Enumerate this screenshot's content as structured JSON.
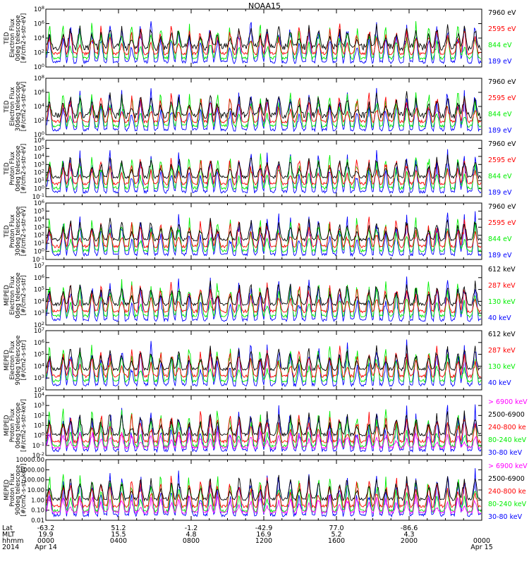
{
  "title": "NOAA15",
  "colors": {
    "black": "#000000",
    "red": "#ff0000",
    "green": "#00ee00",
    "blue": "#0000ff",
    "magenta": "#ff00ff"
  },
  "chart_data": [
    {
      "type": "line",
      "instrument": "TED",
      "ylabel": [
        "TED",
        "Electron Flux",
        "0deg telescope",
        "[#/cm2-s-str-eV]"
      ],
      "scale": "log",
      "yticks": [
        "10^0",
        "10^2",
        "10^4",
        "10^6",
        "10^8"
      ],
      "series": [
        {
          "name": "7960 eV",
          "color": "#000000"
        },
        {
          "name": "2595 eV",
          "color": "#ff0000"
        },
        {
          "name": "844 eV",
          "color": "#00ee00"
        },
        {
          "name": "189 eV",
          "color": "#0000ff"
        }
      ]
    },
    {
      "type": "line",
      "instrument": "TED",
      "ylabel": [
        "TED",
        "Electron Flux",
        "30deg telescope",
        "[#/cm2-s-str-eV]"
      ],
      "scale": "log",
      "yticks": [
        "10^0",
        "10^2",
        "10^4",
        "10^6",
        "10^8"
      ],
      "series": [
        {
          "name": "7960 eV",
          "color": "#000000"
        },
        {
          "name": "2595 eV",
          "color": "#ff0000"
        },
        {
          "name": "844 eV",
          "color": "#00ee00"
        },
        {
          "name": "189 eV",
          "color": "#0000ff"
        }
      ]
    },
    {
      "type": "line",
      "instrument": "TED",
      "ylabel": [
        "TED",
        "Proton Flux",
        "0deg telescope",
        "[#/cm2-s-str-eV]"
      ],
      "scale": "log",
      "yticks": [
        "10^-1",
        "10^0",
        "10^1",
        "10^2",
        "10^3",
        "10^4",
        "10^5",
        "10^6"
      ],
      "series": [
        {
          "name": "7960 eV",
          "color": "#000000"
        },
        {
          "name": "2595 eV",
          "color": "#ff0000"
        },
        {
          "name": "844 eV",
          "color": "#00ee00"
        },
        {
          "name": "189 eV",
          "color": "#0000ff"
        }
      ]
    },
    {
      "type": "line",
      "instrument": "TED",
      "ylabel": [
        "TED",
        "Proton Flux",
        "30deg telescope",
        "[#/cm2-s-str-eV]"
      ],
      "scale": "log",
      "yticks": [
        "10^-1",
        "10^0",
        "10^1",
        "10^2",
        "10^3",
        "10^4",
        "10^5",
        "10^6"
      ],
      "series": [
        {
          "name": "7960 eV",
          "color": "#000000"
        },
        {
          "name": "2595 eV",
          "color": "#ff0000"
        },
        {
          "name": "844 eV",
          "color": "#00ee00"
        },
        {
          "name": "189 eV",
          "color": "#0000ff"
        }
      ]
    },
    {
      "type": "line",
      "instrument": "MEPED",
      "ylabel": [
        "MEPED",
        "Electron Flux",
        "0deg telescope",
        "[#/cm2-s-str]"
      ],
      "scale": "log",
      "yticks": [
        "10^2",
        "10^3",
        "10^4",
        "10^5",
        "10^6",
        "10^7"
      ],
      "series": [
        {
          "name": "612 keV",
          "color": "#000000"
        },
        {
          "name": "287 keV",
          "color": "#ff0000"
        },
        {
          "name": "130 keV",
          "color": "#00ee00"
        },
        {
          "name": "40 keV",
          "color": "#0000ff"
        }
      ]
    },
    {
      "type": "line",
      "instrument": "MEPED",
      "ylabel": [
        "MEPED",
        "Electron Flux",
        "90deg telescope",
        "[#/cm2-s-str]"
      ],
      "scale": "log",
      "yticks": [
        "10^2",
        "10^3",
        "10^4",
        "10^5",
        "10^6",
        "10^7"
      ],
      "series": [
        {
          "name": "612 keV",
          "color": "#000000"
        },
        {
          "name": "287 keV",
          "color": "#ff0000"
        },
        {
          "name": "130 keV",
          "color": "#00ee00"
        },
        {
          "name": "40 keV",
          "color": "#0000ff"
        }
      ]
    },
    {
      "type": "line",
      "instrument": "MEPED",
      "ylabel": [
        "MEPED",
        "Proton Flux",
        "0deg telescope",
        "[#/cm2-s-str-keV]"
      ],
      "scale": "log",
      "yticks": [
        "10^-2",
        "10^-1",
        "10^0",
        "10^1",
        "10^2",
        "10^3",
        "10^4"
      ],
      "series": [
        {
          "name": "> 6900 keV",
          "color": "#ff00ff"
        },
        {
          "name": "2500-6900",
          "color": "#000000"
        },
        {
          "name": "240-800 ke",
          "color": "#ff0000"
        },
        {
          "name": "80-240 keV",
          "color": "#00ee00"
        },
        {
          "name": "30-80 keV",
          "color": "#0000ff"
        }
      ]
    },
    {
      "type": "line",
      "instrument": "MEPED",
      "ylabel": [
        "MEPED",
        "Proton Flux",
        "90deg telescope",
        "[#/cm2-s-str-keV]"
      ],
      "scale": "log",
      "yticks": [
        "0.01",
        "0.10",
        "1.00",
        "10.00",
        "100.00",
        "1000.00",
        "10000.00"
      ],
      "series": [
        {
          "name": "> 6900 keV",
          "color": "#ff00ff"
        },
        {
          "name": "2500-6900",
          "color": "#000000"
        },
        {
          "name": "240-800 ke",
          "color": "#ff0000"
        },
        {
          "name": "80-240 keV",
          "color": "#00ee00"
        },
        {
          "name": "30-80 keV",
          "color": "#0000ff"
        }
      ]
    }
  ],
  "xaxis": {
    "row_labels": [
      "Lat",
      "MLT",
      "hhmm",
      "2014"
    ],
    "columns": [
      {
        "lat": "-63.2",
        "mlt": "19.9",
        "hhmm": "0000",
        "date": "Apr 14"
      },
      {
        "lat": "51.2",
        "mlt": "15.5",
        "hhmm": "0400",
        "date": ""
      },
      {
        "lat": "-1.2",
        "mlt": "4.8",
        "hhmm": "0800",
        "date": ""
      },
      {
        "lat": "-42.9",
        "mlt": "16.9",
        "hhmm": "1200",
        "date": ""
      },
      {
        "lat": "77.0",
        "mlt": "5.2",
        "hhmm": "1600",
        "date": ""
      },
      {
        "lat": "-86.6",
        "mlt": "4.3",
        "hhmm": "2000",
        "date": ""
      },
      {
        "lat": "",
        "mlt": "",
        "hhmm": "0000",
        "date": "Apr 15"
      }
    ]
  }
}
